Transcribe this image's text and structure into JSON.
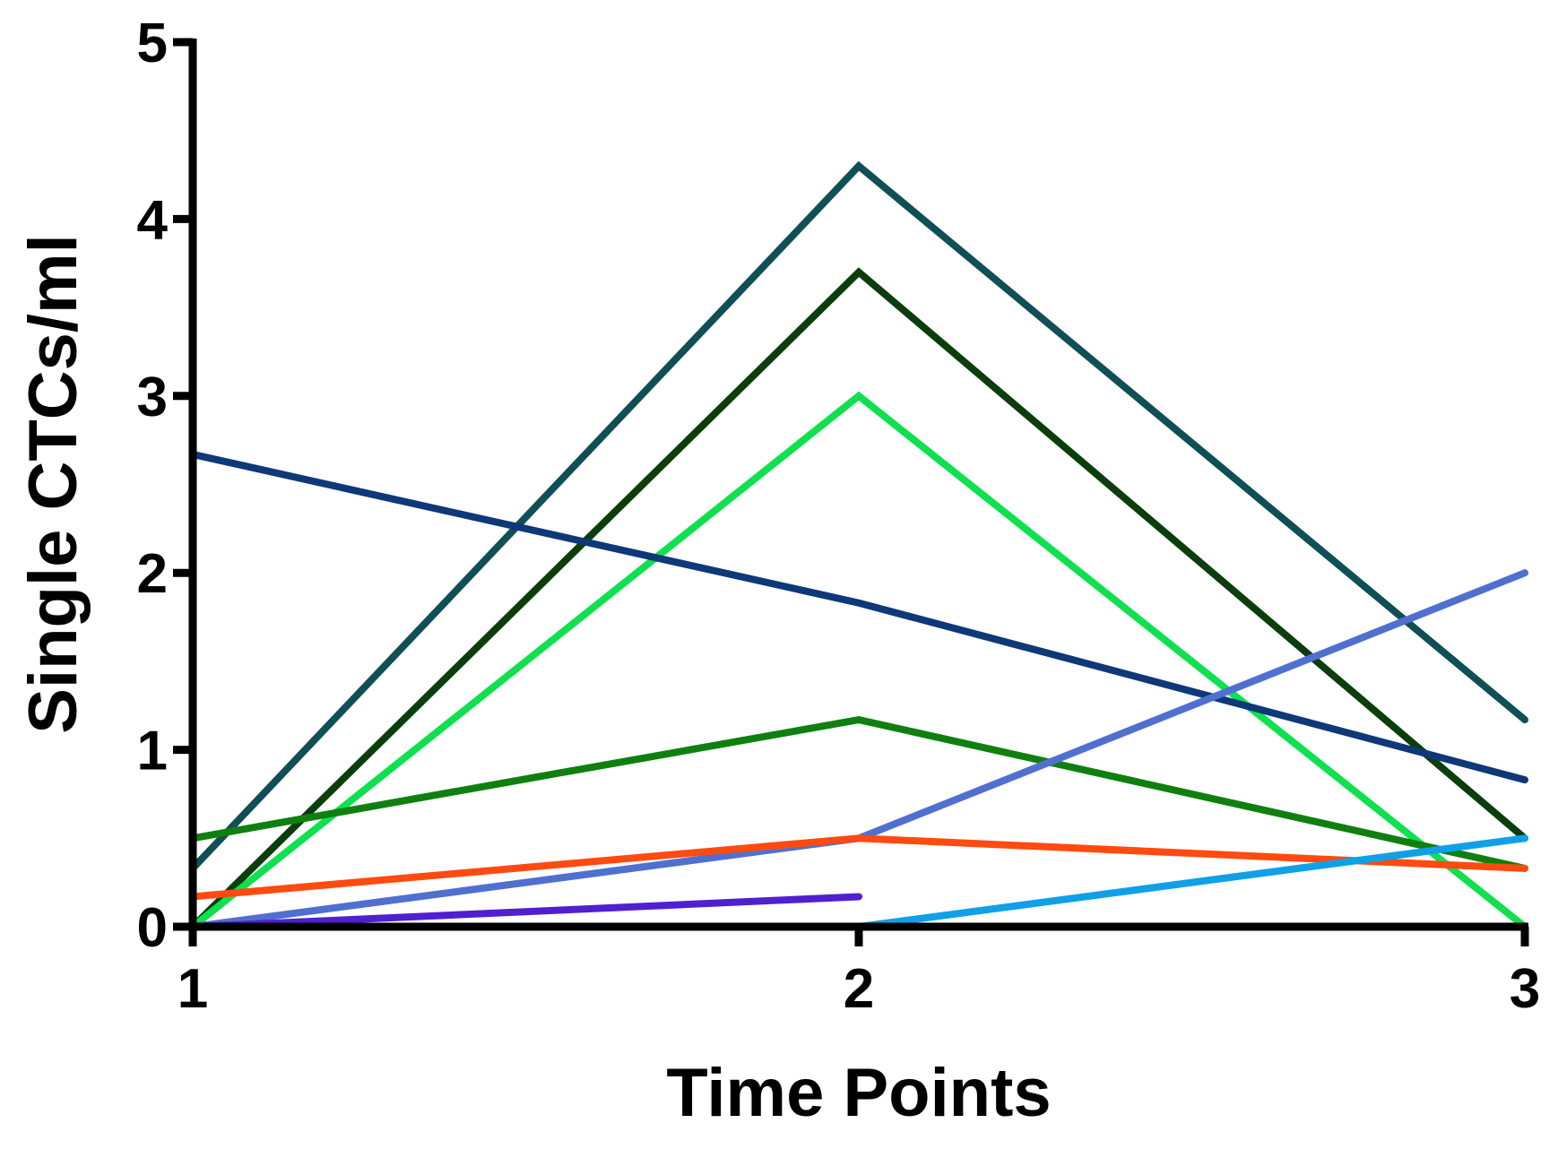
{
  "chart_data": {
    "type": "line",
    "x_label": "Time Points",
    "y_label": "Single CTCs/ml",
    "x": [
      1,
      2,
      3
    ],
    "xlim": [
      1,
      3
    ],
    "xticks": [
      1,
      2,
      3
    ],
    "ylim": [
      0,
      5
    ],
    "yticks": [
      0,
      1,
      2,
      3,
      4,
      5
    ],
    "series": [
      {
        "color": "#0f4f55",
        "values": [
          0.33,
          4.3,
          1.17
        ]
      },
      {
        "color": "#0c3d0c",
        "values": [
          0,
          3.7,
          0.5
        ]
      },
      {
        "color": "#10e050",
        "values": [
          0,
          3.0,
          0
        ]
      },
      {
        "color": "#0e3878",
        "values": [
          2.67,
          1.83,
          0.83
        ]
      },
      {
        "color": "#0f800f",
        "values": [
          0.5,
          1.17,
          0.33
        ]
      },
      {
        "color": "#5070d0",
        "values": [
          0,
          0.5,
          2.0
        ]
      },
      {
        "color": "#ff4a10",
        "values": [
          0.17,
          0.5,
          0.33
        ]
      },
      {
        "color": "#5020d0",
        "values": [
          0,
          0.17,
          null
        ]
      },
      {
        "color": "#10a0e8",
        "values": [
          0,
          0,
          0.5
        ]
      },
      {
        "color": "#0d2a5a",
        "values": [
          0,
          0,
          0
        ]
      }
    ]
  }
}
